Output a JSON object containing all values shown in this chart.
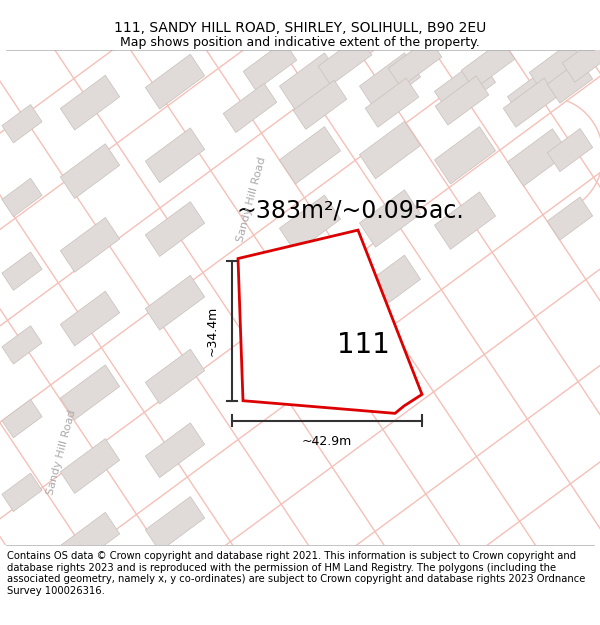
{
  "title_line1": "111, SANDY HILL ROAD, SHIRLEY, SOLIHULL, B90 2EU",
  "title_line2": "Map shows position and indicative extent of the property.",
  "area_text": "~383m²/~0.095ac.",
  "dim_width": "~42.9m",
  "dim_height": "~34.4m",
  "property_number": "111",
  "road_label_top": "Sandy Hill Road",
  "road_label_bottom": "Sandy Hill Road",
  "copyright_text": "Contains OS data © Crown copyright and database right 2021. This information is subject to Crown copyright and database rights 2023 and is reproduced with the permission of HM Land Registry. The polygons (including the associated geometry, namely x, y co-ordinates) are subject to Crown copyright and database rights 2023 Ordnance Survey 100026316.",
  "map_bg_color": "#ffffff",
  "road_color": "#f5c0b8",
  "road_thin_color": "#f5c0b8",
  "building_color": "#e0dbd8",
  "building_edge_color": "#c8c0bc",
  "property_fill": "#ffffff",
  "property_edge": "#dd0000",
  "title_fontsize": 10,
  "subtitle_fontsize": 9,
  "area_fontsize": 17,
  "label_fontsize": 20,
  "road_label_fontsize": 8,
  "copyright_fontsize": 7.2,
  "dim_fontsize": 9,
  "dim_color": "#333333"
}
